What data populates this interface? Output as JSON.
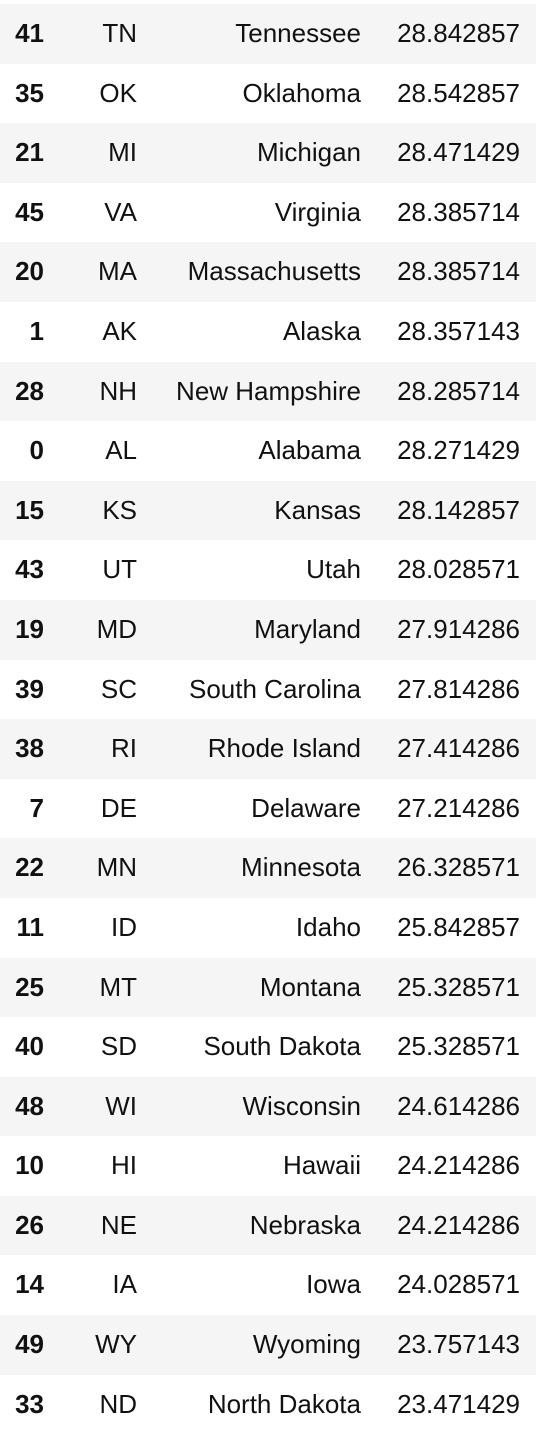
{
  "table": {
    "rows": [
      {
        "index": "41",
        "abbr": "TN",
        "state": "Tennessee",
        "value": "28.842857"
      },
      {
        "index": "35",
        "abbr": "OK",
        "state": "Oklahoma",
        "value": "28.542857"
      },
      {
        "index": "21",
        "abbr": "MI",
        "state": "Michigan",
        "value": "28.471429"
      },
      {
        "index": "45",
        "abbr": "VA",
        "state": "Virginia",
        "value": "28.385714"
      },
      {
        "index": "20",
        "abbr": "MA",
        "state": "Massachusetts",
        "value": "28.385714"
      },
      {
        "index": "1",
        "abbr": "AK",
        "state": "Alaska",
        "value": "28.357143"
      },
      {
        "index": "28",
        "abbr": "NH",
        "state": "New Hampshire",
        "value": "28.285714"
      },
      {
        "index": "0",
        "abbr": "AL",
        "state": "Alabama",
        "value": "28.271429"
      },
      {
        "index": "15",
        "abbr": "KS",
        "state": "Kansas",
        "value": "28.142857"
      },
      {
        "index": "43",
        "abbr": "UT",
        "state": "Utah",
        "value": "28.028571"
      },
      {
        "index": "19",
        "abbr": "MD",
        "state": "Maryland",
        "value": "27.914286"
      },
      {
        "index": "39",
        "abbr": "SC",
        "state": "South Carolina",
        "value": "27.814286"
      },
      {
        "index": "38",
        "abbr": "RI",
        "state": "Rhode Island",
        "value": "27.414286"
      },
      {
        "index": "7",
        "abbr": "DE",
        "state": "Delaware",
        "value": "27.214286"
      },
      {
        "index": "22",
        "abbr": "MN",
        "state": "Minnesota",
        "value": "26.328571"
      },
      {
        "index": "11",
        "abbr": "ID",
        "state": "Idaho",
        "value": "25.842857"
      },
      {
        "index": "25",
        "abbr": "MT",
        "state": "Montana",
        "value": "25.328571"
      },
      {
        "index": "40",
        "abbr": "SD",
        "state": "South Dakota",
        "value": "25.328571"
      },
      {
        "index": "48",
        "abbr": "WI",
        "state": "Wisconsin",
        "value": "24.614286"
      },
      {
        "index": "10",
        "abbr": "HI",
        "state": "Hawaii",
        "value": "24.214286"
      },
      {
        "index": "26",
        "abbr": "NE",
        "state": "Nebraska",
        "value": "24.214286"
      },
      {
        "index": "14",
        "abbr": "IA",
        "state": "Iowa",
        "value": "24.028571"
      },
      {
        "index": "49",
        "abbr": "WY",
        "state": "Wyoming",
        "value": "23.757143"
      },
      {
        "index": "33",
        "abbr": "ND",
        "state": "North Dakota",
        "value": "23.471429"
      }
    ]
  }
}
